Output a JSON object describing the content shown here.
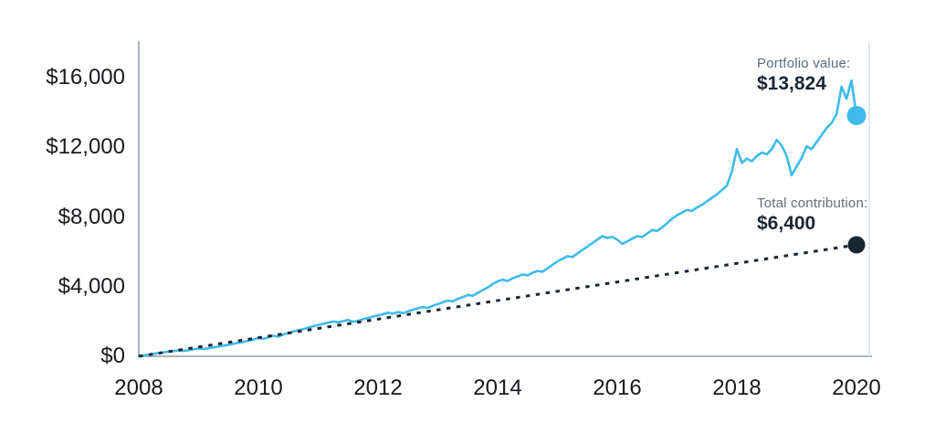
{
  "chart_data": {
    "type": "line",
    "title": "",
    "xlabel": "",
    "ylabel": "",
    "xlim": [
      2008,
      2020
    ],
    "ylim": [
      0,
      16000
    ],
    "grid": false,
    "legend_position": "annotations-right",
    "x_ticks": [
      "2008",
      "2010",
      "2012",
      "2014",
      "2016",
      "2018",
      "2020"
    ],
    "y_ticks": [
      "$0",
      "$4,000",
      "$8,000",
      "$12,000",
      "$16,000"
    ],
    "annotations": {
      "portfolio_label": "Portfolio value:",
      "portfolio_value": "$13,824",
      "contribution_label": "Total contribution:",
      "contribution_value": "$6,400"
    },
    "series": [
      {
        "name": "Portfolio value",
        "style": "solid",
        "color": "#3ebbe9",
        "end_value": 13824,
        "x_start": 2008,
        "x_step_years": 0.0833333,
        "values": [
          0,
          50,
          95,
          140,
          190,
          230,
          270,
          310,
          330,
          310,
          350,
          400,
          450,
          420,
          460,
          510,
          560,
          610,
          660,
          720,
          780,
          820,
          890,
          960,
          1050,
          1000,
          1090,
          1180,
          1130,
          1250,
          1330,
          1420,
          1500,
          1560,
          1650,
          1720,
          1800,
          1870,
          1930,
          2000,
          1950,
          2020,
          2090,
          1990,
          2040,
          2130,
          2200,
          2280,
          2350,
          2420,
          2500,
          2450,
          2540,
          2480,
          2580,
          2670,
          2760,
          2830,
          2780,
          2900,
          3000,
          3100,
          3200,
          3150,
          3300,
          3400,
          3520,
          3480,
          3640,
          3800,
          3950,
          4150,
          4300,
          4400,
          4320,
          4480,
          4580,
          4700,
          4650,
          4800,
          4900,
          4850,
          5050,
          5250,
          5450,
          5600,
          5750,
          5700,
          5900,
          6100,
          6300,
          6500,
          6700,
          6900,
          6800,
          6850,
          6700,
          6450,
          6600,
          6750,
          6900,
          6850,
          7050,
          7250,
          7200,
          7400,
          7650,
          7900,
          8100,
          8250,
          8400,
          8350,
          8550,
          8700,
          8900,
          9100,
          9300,
          9550,
          9800,
          10600,
          11900,
          11100,
          11350,
          11200,
          11500,
          11700,
          11600,
          11900,
          12430,
          12100,
          11500,
          10390,
          10900,
          11400,
          12060,
          11900,
          12300,
          12700,
          13100,
          13400,
          13900,
          15480,
          14790,
          15840,
          13824
        ]
      },
      {
        "name": "Total contribution",
        "style": "dashed",
        "color": "#1a2533",
        "end_value": 6400,
        "x": [
          2008,
          2020
        ],
        "values": [
          0,
          6400
        ]
      }
    ]
  },
  "colors": {
    "background": "#ffffff",
    "portfolio_line": "#3ebbe9",
    "contribution_line": "#1a2533",
    "annotation_label_gray": "#5d6e7d",
    "annotation_value_navy": "#1a2533",
    "tick_text": "#17191c",
    "axis_line": "#a9b6c0",
    "right_border": "#d8e2e9"
  }
}
